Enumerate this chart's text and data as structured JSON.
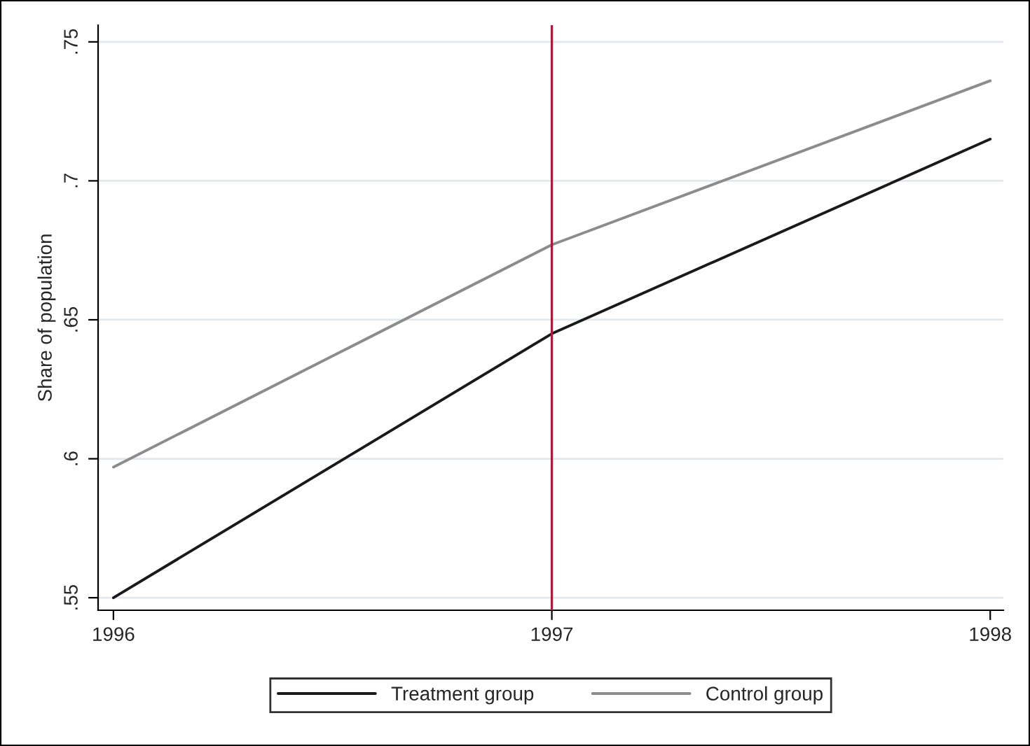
{
  "chart_data": {
    "type": "line",
    "ylabel": "Share of population",
    "x": [
      1996,
      1997,
      1998
    ],
    "series": [
      {
        "name": "Treatment group",
        "color": "#1a1a1a",
        "values": [
          0.55,
          0.645,
          0.715
        ]
      },
      {
        "name": "Control group",
        "color": "#8c8c8c",
        "values": [
          0.597,
          0.677,
          0.736
        ]
      }
    ],
    "xlim": [
      1995.965,
      1998.03
    ],
    "ylim": [
      0.5455,
      0.756
    ],
    "xticks": [
      1996,
      1997,
      1998
    ],
    "yticks": [
      {
        "value": 0.55,
        "label": ".55"
      },
      {
        "value": 0.6,
        "label": ".6"
      },
      {
        "value": 0.65,
        "label": ".65"
      },
      {
        "value": 0.7,
        "label": ".7"
      },
      {
        "value": 0.75,
        "label": ".75"
      }
    ],
    "ref_lines": [
      {
        "axis": "x",
        "value": 1997,
        "color": "#a3203e"
      }
    ],
    "grid": "y",
    "legend": "bottom",
    "marker": "none",
    "line_style": "solid"
  }
}
